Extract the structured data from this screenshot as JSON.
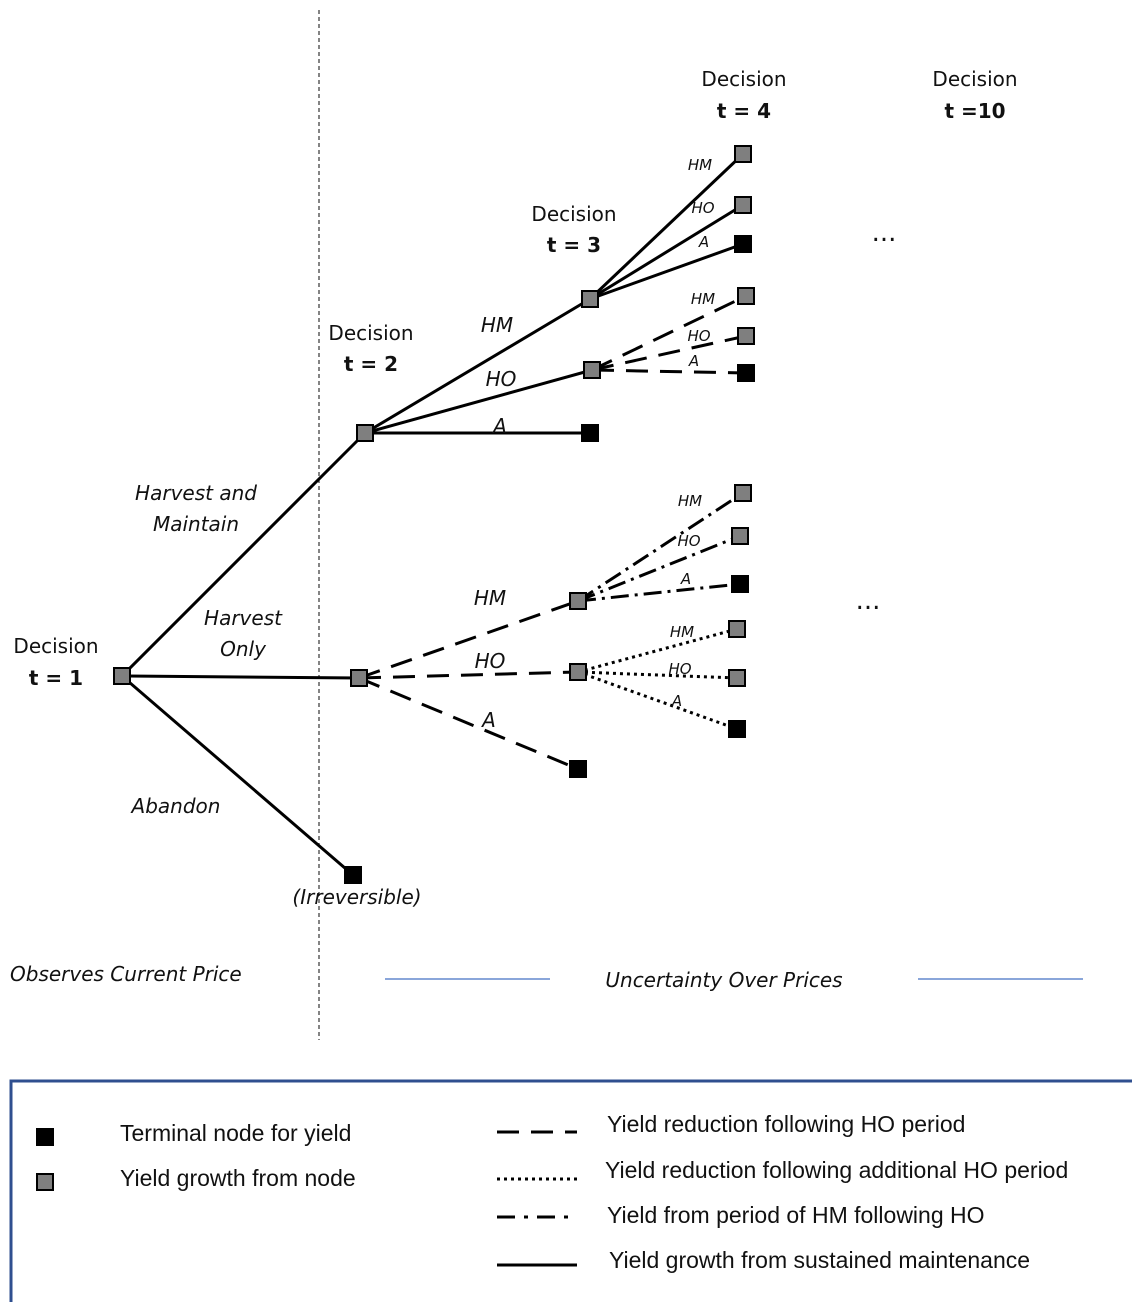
{
  "decisions": {
    "t1": {
      "label": "Decision",
      "time": "t = 1"
    },
    "t2": {
      "label": "Decision",
      "time": "t = 2"
    },
    "t3": {
      "label": "Decision",
      "time": "t = 3"
    },
    "t4": {
      "label": "Decision",
      "time": "t = 4"
    },
    "t10": {
      "label": "Decision",
      "time": "t =10"
    }
  },
  "branches": {
    "harvest_maintain_line1": "Harvest and",
    "harvest_maintain_line2": "Maintain",
    "harvest_only_line1": "Harvest",
    "harvest_only_line2": "Only",
    "abandon": "Abandon",
    "irreversible": "(Irreversible)"
  },
  "edge_labels": {
    "hm": "HM",
    "ho": "HO",
    "a": "A"
  },
  "ellipsis": "...",
  "notes": {
    "observes": "Observes Current Price",
    "uncertainty": "Uncertainty Over Prices"
  },
  "legend": {
    "terminal": "Terminal node for yield",
    "growth": "Yield growth from node",
    "dashed": "Yield reduction following HO period",
    "dotted": "Yield reduction following additional HO period",
    "dashdot": "Yield from period of HM  following HO",
    "solid": "Yield growth from sustained maintenance"
  },
  "colors": {
    "growth_node": "#7f7f7f",
    "terminal_node": "#000000",
    "legend_border": "#2f4f8f",
    "uncertainty_rule": "#4472c4"
  }
}
